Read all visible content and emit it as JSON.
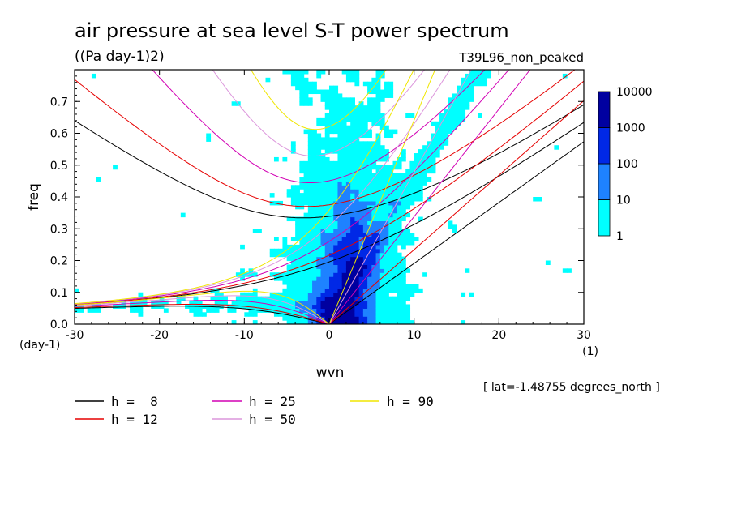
{
  "chart_data": {
    "type": "heatmap",
    "title": "air pressure at sea level S-T power spectrum",
    "units": "((Pa day-1)2)",
    "experiment": "T39L96_non_peaked",
    "xlabel": "wvn",
    "x_unit": "(1)",
    "ylabel": "freq",
    "y_unit": "(day-1)",
    "xlim": [
      -30,
      30
    ],
    "ylim": [
      0,
      0.8
    ],
    "x_ticks": [
      "-30",
      "-20",
      "-10",
      "0",
      "10",
      "20",
      "30"
    ],
    "y_ticks": [
      "0.0",
      "0.1",
      "0.2",
      "0.3",
      "0.4",
      "0.5",
      "0.6",
      "0.7"
    ],
    "annotation": "[ lat=-1.48755 degrees_north ]",
    "colorbar": {
      "levels": [
        "1",
        "10",
        "100",
        "1000",
        "10000"
      ],
      "colors": [
        "#00ffff",
        "#1e82ff",
        "#0028e6",
        "#0000a0",
        "#4b14b4"
      ]
    },
    "dispersion_curves": [
      {
        "label": "h =  8",
        "h": 8,
        "color": "#000000"
      },
      {
        "label": "h = 12",
        "h": 12,
        "color": "#e60000"
      },
      {
        "label": "h = 25",
        "h": 25,
        "color": "#d200b4"
      },
      {
        "label": "h = 50",
        "h": 50,
        "color": "#dc96dc"
      },
      {
        "label": "h = 90",
        "h": 90,
        "color": "#f0e600"
      }
    ]
  }
}
